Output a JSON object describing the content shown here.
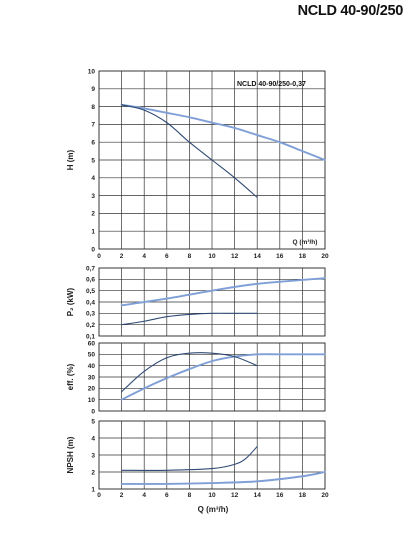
{
  "title": "NCLD 40-90/250",
  "chart_data": [
    {
      "id": "H",
      "type": "line",
      "ylabel": "H (m)",
      "xlabel": "Q (m³/h)",
      "annotation": "NCLD 40-90/250-0,37",
      "xlim": [
        0,
        20
      ],
      "ylim": [
        0,
        10
      ],
      "xticks": [
        "0",
        "2",
        "4",
        "6",
        "8",
        "10",
        "12",
        "14",
        "16",
        "18",
        "20"
      ],
      "yticks": [
        "0",
        "1",
        "2",
        "3",
        "4",
        "5",
        "6",
        "7",
        "8",
        "9",
        "10"
      ],
      "grid": true,
      "series": [
        {
          "color": "#7f9fd6",
          "x": [
            2,
            4,
            6,
            8,
            10,
            12,
            14,
            16,
            18,
            20
          ],
          "y": [
            8.1,
            7.9,
            7.65,
            7.4,
            7.1,
            6.8,
            6.4,
            6.0,
            5.5,
            5.0
          ]
        },
        {
          "color": "#2f4a74",
          "x": [
            2,
            4,
            6,
            8,
            10,
            12,
            14
          ],
          "y": [
            8.1,
            7.8,
            7.1,
            6.0,
            5.0,
            4.0,
            2.9
          ]
        }
      ]
    },
    {
      "id": "P2",
      "type": "line",
      "ylabel": "P₂ (kW)",
      "xlim": [
        0,
        20
      ],
      "ylim": [
        0.1,
        0.7
      ],
      "yticks": [
        "0,1",
        "0,2",
        "0,3",
        "0,4",
        "0,5",
        "0,6",
        "0,7"
      ],
      "grid": true,
      "series": [
        {
          "color": "#7f9fd6",
          "x": [
            2,
            6,
            10,
            14,
            20
          ],
          "y": [
            0.37,
            0.43,
            0.5,
            0.56,
            0.61
          ]
        },
        {
          "color": "#2f4a74",
          "x": [
            2,
            4,
            6,
            8,
            10,
            12,
            14
          ],
          "y": [
            0.2,
            0.23,
            0.27,
            0.29,
            0.3,
            0.3,
            0.3
          ]
        }
      ]
    },
    {
      "id": "eff",
      "type": "line",
      "ylabel": "eff. (%)",
      "xlim": [
        0,
        20
      ],
      "ylim": [
        0,
        60
      ],
      "yticks": [
        "0",
        "10",
        "20",
        "30",
        "40",
        "50",
        "60"
      ],
      "grid": true,
      "series": [
        {
          "color": "#7f9fd6",
          "x": [
            2,
            4,
            6,
            8,
            10,
            12,
            14,
            16,
            18,
            20
          ],
          "y": [
            10,
            20,
            29,
            37,
            44,
            48,
            50,
            50,
            50,
            50
          ]
        },
        {
          "color": "#2f4a74",
          "x": [
            2,
            4,
            6,
            8,
            10,
            12,
            14
          ],
          "y": [
            17,
            35,
            47,
            51,
            51,
            48,
            40
          ]
        }
      ]
    },
    {
      "id": "NPSH",
      "type": "line",
      "ylabel": "NPSH (m)",
      "xlabel": "Q (m³/h)",
      "xlim": [
        0,
        20
      ],
      "ylim": [
        1,
        5
      ],
      "xticks": [
        "0",
        "2",
        "4",
        "6",
        "8",
        "10",
        "12",
        "14",
        "16",
        "18",
        "20"
      ],
      "yticks": [
        "1",
        "2",
        "3",
        "4",
        "5"
      ],
      "grid": true,
      "series": [
        {
          "color": "#7f9fd6",
          "x": [
            2,
            6,
            10,
            14,
            18,
            20
          ],
          "y": [
            1.3,
            1.3,
            1.35,
            1.45,
            1.75,
            2.0
          ]
        },
        {
          "color": "#2f4a74",
          "x": [
            2,
            6,
            10,
            12,
            13,
            14
          ],
          "y": [
            2.1,
            2.1,
            2.2,
            2.45,
            2.8,
            3.5
          ]
        }
      ]
    }
  ]
}
